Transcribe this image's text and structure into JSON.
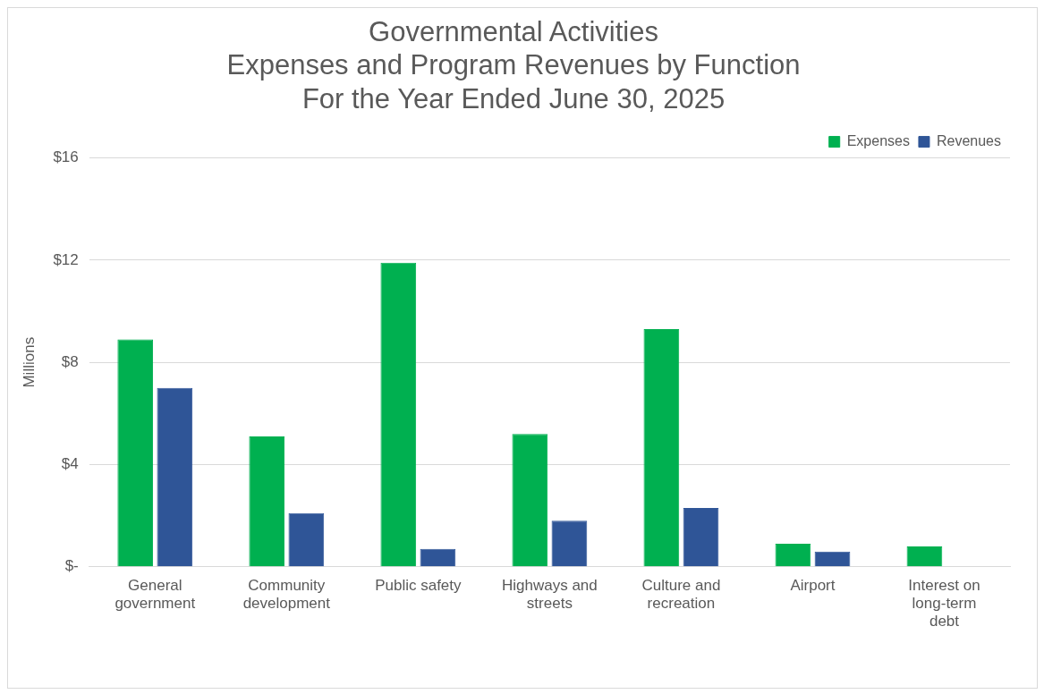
{
  "chart_data": {
    "type": "bar",
    "title": "Governmental Activities\nExpenses and Program Revenues by Function\nFor the Year Ended June 30, 2025",
    "ylabel": "Millions",
    "categories": [
      "General government",
      "Community development",
      "Public safety",
      "Highways and streets",
      "Culture and recreation",
      "Airport",
      "Interest on long-term debt"
    ],
    "series": [
      {
        "name": "Expenses",
        "color": "#00b050",
        "values": [
          8.9,
          5.1,
          11.9,
          5.2,
          9.3,
          0.9,
          0.8
        ]
      },
      {
        "name": "Revenues",
        "color": "#2f5597",
        "values": [
          7.0,
          2.1,
          0.7,
          1.8,
          2.3,
          0.6,
          0
        ]
      }
    ],
    "ylim": [
      0,
      16
    ],
    "yticks": [
      {
        "value": 0,
        "label": "$-"
      },
      {
        "value": 4,
        "label": "$4"
      },
      {
        "value": 8,
        "label": "$8"
      },
      {
        "value": 12,
        "label": "$12"
      },
      {
        "value": 16,
        "label": "$16"
      }
    ],
    "grid": "y",
    "legend": "top right"
  }
}
